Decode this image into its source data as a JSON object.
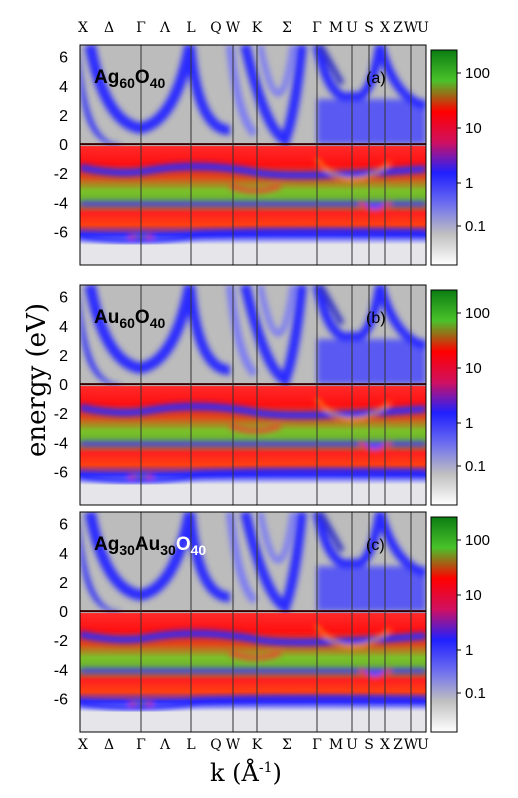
{
  "chart_data": {
    "type": "heatmap",
    "kpoint_labels": [
      "X",
      "Δ",
      "Γ",
      "Λ",
      "L",
      "Q",
      "W",
      "K",
      "Σ",
      "Γ",
      "M",
      "U",
      "S",
      "X",
      "Z",
      "W",
      "U"
    ],
    "xlabel": "k (Å",
    "xlabel_exp": "-1",
    "xlabel_close": ")",
    "ylabel": "energy (eV)",
    "ylim": [
      -8.3,
      6.8
    ],
    "yticks": [
      6,
      4,
      2,
      0,
      -2,
      -4,
      -6
    ],
    "colorbar": {
      "scale": "log",
      "ticks": [
        "100",
        "10",
        "1",
        "0.1"
      ],
      "colors": [
        "#0b7d12",
        "#49c22a",
        "#ff0000",
        "#d11060",
        "#2020ff",
        "#6d6df0",
        "#c0c0c0",
        "#ffffff"
      ]
    },
    "panels": [
      {
        "tag": "(a)",
        "formula": [
          {
            "t": "Ag",
            "sub": false,
            "c": "#000000"
          },
          {
            "t": "60",
            "sub": true,
            "c": "#000000"
          },
          {
            "t": "O",
            "sub": false,
            "c": "#000000"
          },
          {
            "t": "40",
            "sub": true,
            "c": "#000000"
          }
        ]
      },
      {
        "tag": "(b)",
        "formula": [
          {
            "t": "Au",
            "sub": false,
            "c": "#000000"
          },
          {
            "t": "60",
            "sub": true,
            "c": "#000000"
          },
          {
            "t": "O",
            "sub": false,
            "c": "#000000"
          },
          {
            "t": "40",
            "sub": true,
            "c": "#000000"
          }
        ]
      },
      {
        "tag": "(c)",
        "formula": [
          {
            "t": "Ag",
            "sub": false,
            "c": "#000000"
          },
          {
            "t": "30",
            "sub": true,
            "c": "#000000"
          },
          {
            "t": "Au",
            "sub": false,
            "c": "#000000"
          },
          {
            "t": "30",
            "sub": true,
            "c": "#000000"
          },
          {
            "t": "O",
            "sub": false,
            "c": "#ffffff"
          },
          {
            "t": "40",
            "sub": true,
            "c": "#ffffff"
          }
        ]
      }
    ]
  }
}
